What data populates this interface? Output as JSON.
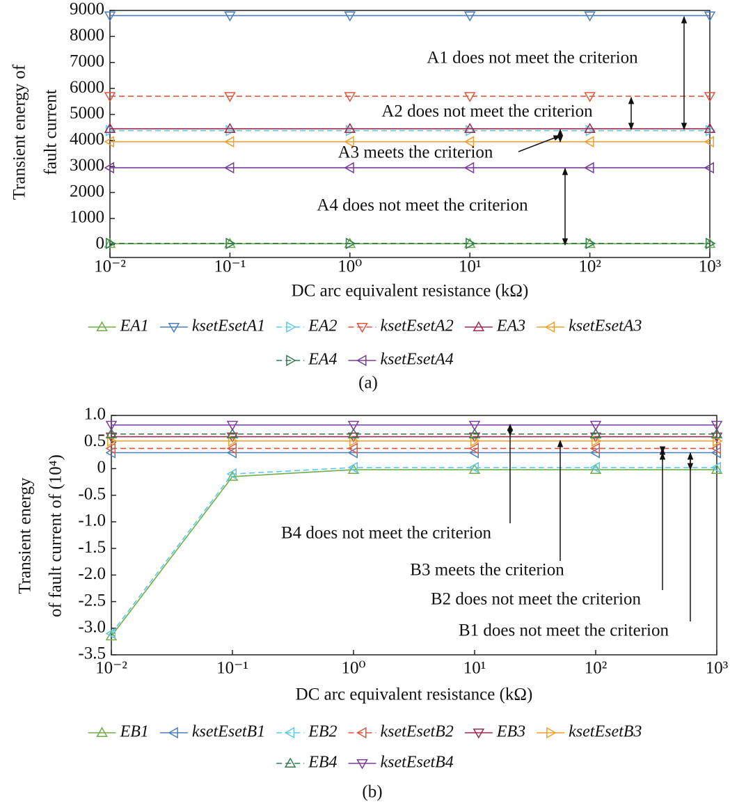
{
  "chart_data": [
    {
      "type": "line",
      "log_x": true,
      "ylabel": [
        "Transient energy of",
        "fault current"
      ],
      "xlabel": "DC arc equivalent resistance (kΩ)",
      "caption": "(a)",
      "x": [
        0.01,
        0.1,
        1,
        10,
        100,
        1000
      ],
      "xlim": [
        0.01,
        1000
      ],
      "xticks": [
        {
          "value": 0.01,
          "label": "10⁻²"
        },
        {
          "value": 0.1,
          "label": "10⁻¹"
        },
        {
          "value": 1,
          "label": "10⁰"
        },
        {
          "value": 10,
          "label": "10¹"
        },
        {
          "value": 100,
          "label": "10²"
        },
        {
          "value": 1000,
          "label": "10³"
        }
      ],
      "ylim": [
        -500,
        9000
      ],
      "yticks": [
        0,
        1000,
        2000,
        3000,
        4000,
        5000,
        6000,
        7000,
        8000,
        9000
      ],
      "annotations": [
        "A1 does not meet the criterion",
        "A2 does not meet the criterion",
        "A3 meets the criterion",
        "A4 does not meet the criterion"
      ],
      "series": [
        {
          "name": "EA1",
          "color": "#70ad47",
          "marker": "triangle-up",
          "dashed": false,
          "values": [
            30,
            30,
            30,
            30,
            30,
            30
          ]
        },
        {
          "name": "ksetEsetA1",
          "color": "#4a7ebb",
          "marker": "triangle-down",
          "dashed": false,
          "values": [
            8800,
            8800,
            8800,
            8800,
            8800,
            8800
          ]
        },
        {
          "name": "EA2",
          "color": "#5bc8e8",
          "marker": "triangle-right",
          "dashed": true,
          "values": [
            4380,
            4380,
            4380,
            4380,
            4380,
            4380
          ]
        },
        {
          "name": "ksetEsetA2",
          "color": "#e0553a",
          "marker": "triangle-down",
          "dashed": true,
          "values": [
            5700,
            5700,
            5700,
            5700,
            5700,
            5700
          ]
        },
        {
          "name": "EA3",
          "color": "#a3284d",
          "marker": "triangle-up",
          "dashed": false,
          "values": [
            4450,
            4450,
            4450,
            4450,
            4450,
            4450
          ]
        },
        {
          "name": "ksetEsetA3",
          "color": "#f0a030",
          "marker": "triangle-left",
          "dashed": false,
          "values": [
            3950,
            3950,
            3950,
            3950,
            3950,
            3950
          ]
        },
        {
          "name": "EA4",
          "color": "#2e7d4f",
          "marker": "triangle-right",
          "dashed": true,
          "values": [
            40,
            40,
            40,
            40,
            40,
            40
          ]
        },
        {
          "name": "ksetEsetA4",
          "color": "#7a3b9c",
          "marker": "triangle-left",
          "dashed": false,
          "values": [
            2950,
            2950,
            2950,
            2950,
            2950,
            2950
          ]
        }
      ]
    },
    {
      "type": "line",
      "log_x": true,
      "ylabel": [
        "Transient energy",
        "of fault current of  (10⁴)"
      ],
      "xlabel": "DC arc equivalent resistance (kΩ)",
      "caption": "(b)",
      "x": [
        0.01,
        0.1,
        1,
        10,
        100,
        1000
      ],
      "xlim": [
        0.01,
        1000
      ],
      "xticks": [
        {
          "value": 0.01,
          "label": "10⁻²"
        },
        {
          "value": 0.1,
          "label": "10⁻¹"
        },
        {
          "value": 1,
          "label": "10⁰"
        },
        {
          "value": 10,
          "label": "10¹"
        },
        {
          "value": 100,
          "label": "10²"
        },
        {
          "value": 1000,
          "label": "10³"
        }
      ],
      "ylim": [
        -3.5,
        1.0
      ],
      "yticks": [
        -3.5,
        {
          "value": -3,
          "label": "-3.0"
        },
        -2.5,
        {
          "value": -2,
          "label": "-2.0"
        },
        -1.5,
        {
          "value": -1,
          "label": "-1.0"
        },
        -0.5,
        0,
        0.5,
        {
          "value": 1,
          "label": "1.0"
        }
      ],
      "annotations": [
        "B4 does not meet the criterion",
        "B3 meets the criterion",
        "B2 does not meet the criterion",
        "B1 does not meet the criterion"
      ],
      "series": [
        {
          "name": "EB1",
          "color": "#70ad47",
          "marker": "triangle-up",
          "dashed": false,
          "values": [
            -3.15,
            -0.15,
            -0.02,
            -0.02,
            -0.02,
            -0.02
          ]
        },
        {
          "name": "ksetEsetB1",
          "color": "#4a7ebb",
          "marker": "triangle-left",
          "dashed": false,
          "values": [
            0.3,
            0.3,
            0.3,
            0.3,
            0.3,
            0.3
          ]
        },
        {
          "name": "EB2",
          "color": "#5bc8e8",
          "marker": "triangle-left",
          "dashed": true,
          "values": [
            -3.1,
            -0.1,
            0.02,
            0.02,
            0.02,
            0.02
          ]
        },
        {
          "name": "ksetEsetB2",
          "color": "#e0553a",
          "marker": "triangle-left",
          "dashed": true,
          "values": [
            0.38,
            0.38,
            0.38,
            0.38,
            0.38,
            0.38
          ]
        },
        {
          "name": "EB3",
          "color": "#a3284d",
          "marker": "triangle-down",
          "dashed": false,
          "values": [
            0.6,
            0.6,
            0.6,
            0.6,
            0.6,
            0.6
          ]
        },
        {
          "name": "ksetEsetB3",
          "color": "#f0a030",
          "marker": "triangle-right",
          "dashed": false,
          "values": [
            0.52,
            0.52,
            0.52,
            0.52,
            0.52,
            0.52
          ]
        },
        {
          "name": "EB4",
          "color": "#2e7d4f",
          "marker": "triangle-up",
          "dashed": true,
          "values": [
            0.65,
            0.65,
            0.65,
            0.65,
            0.65,
            0.65
          ]
        },
        {
          "name": "ksetEsetB4",
          "color": "#7a3b9c",
          "marker": "triangle-down",
          "dashed": false,
          "values": [
            0.82,
            0.82,
            0.82,
            0.82,
            0.82,
            0.82
          ]
        }
      ]
    }
  ]
}
